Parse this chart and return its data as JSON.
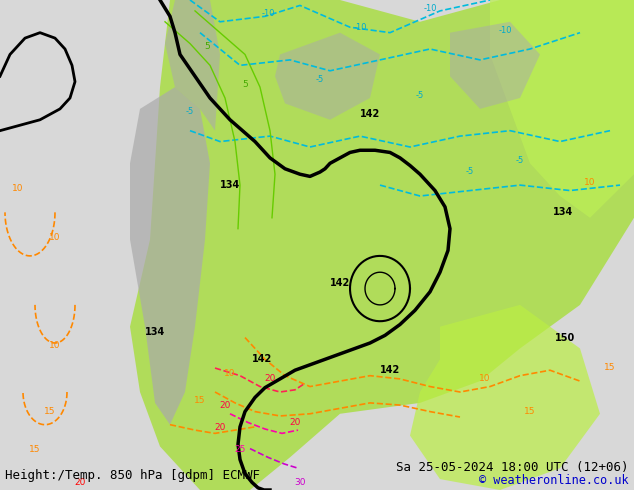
{
  "title_left": "Height:/Temp. 850 hPa [gdpm] ECMWF",
  "title_right": "Sa 25-05-2024 18:00 UTC (12+06)",
  "copyright": "© weatheronline.co.uk",
  "bg_color": "#d8d8d8",
  "map_bg_color": "#d8d8d8",
  "fig_width": 6.34,
  "fig_height": 4.9,
  "dpi": 100,
  "title_fontsize": 9,
  "copyright_fontsize": 8.5,
  "copyright_color": "#0000cc"
}
